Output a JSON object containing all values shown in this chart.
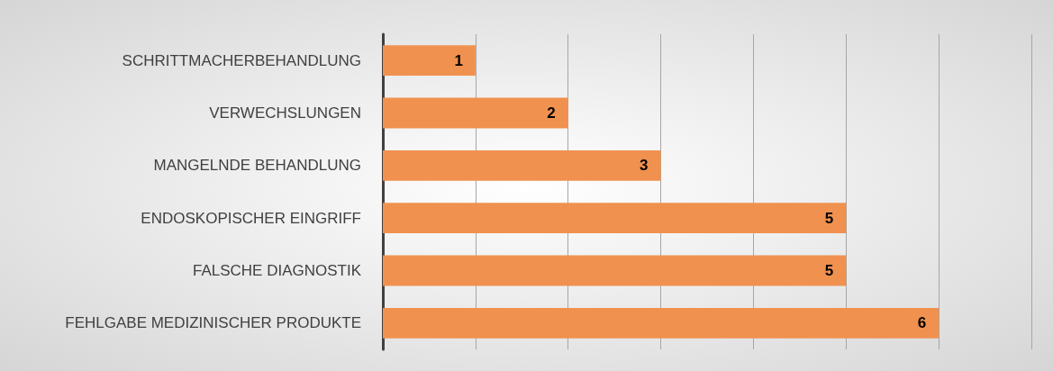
{
  "chart_data": {
    "type": "bar",
    "orientation": "horizontal",
    "categories": [
      "SCHRITTMACHERBEHANDLUNG",
      "VERWECHSLUNGEN",
      "MANGELNDE BEHANDLUNG",
      "ENDOSKOPISCHER EINGRIFF",
      "FALSCHE DIAGNOSTIK",
      "FEHLGABE MEDIZINISCHER PRODUKTE"
    ],
    "values": [
      1,
      2,
      3,
      5,
      5,
      6
    ],
    "color": "#f0914f",
    "xlim": [
      0,
      7
    ],
    "xticks": [
      {
        "value": 0,
        "label": null
      },
      {
        "value": 1,
        "label": null
      },
      {
        "value": 2,
        "label": null
      },
      {
        "value": 3,
        "label": null
      },
      {
        "value": 4,
        "label": null
      },
      {
        "value": 5,
        "label": null
      },
      {
        "value": 6,
        "label": null
      },
      {
        "value": 7,
        "label": null
      }
    ],
    "grid": "x",
    "tick_labels": "y",
    "data_labels": true
  }
}
